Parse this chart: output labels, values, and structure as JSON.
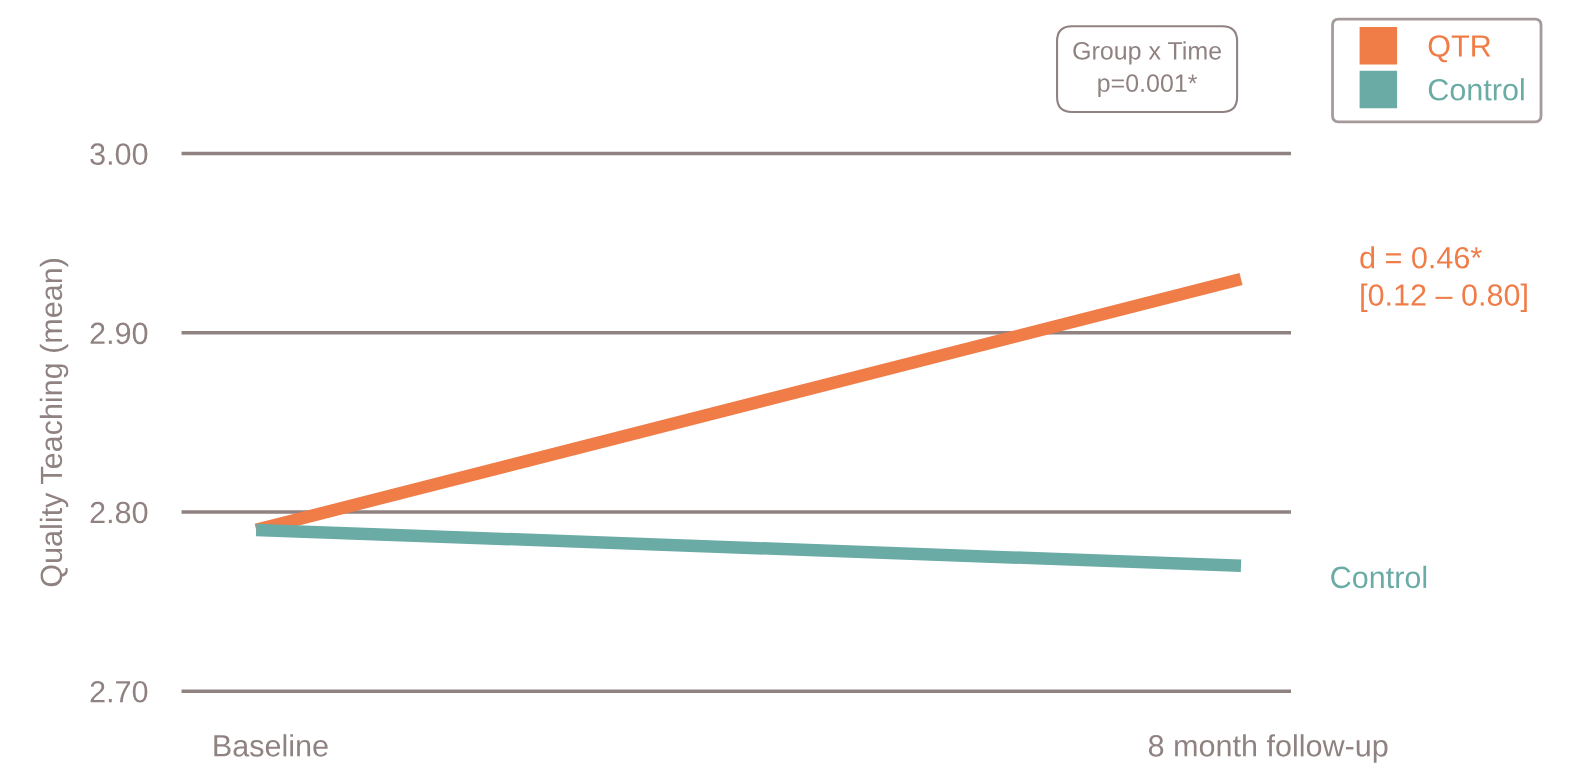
{
  "chart_data": {
    "type": "line",
    "ylabel": "Quality Teaching (mean)",
    "categories": [
      "Baseline",
      "8 month follow-up"
    ],
    "series": [
      {
        "name": "QTR",
        "color": "#f07c47",
        "values": [
          2.79,
          2.93
        ]
      },
      {
        "name": "Control",
        "color": "#6aaba6",
        "values": [
          2.79,
          2.77
        ]
      }
    ],
    "ylim": [
      2.7,
      3.0
    ],
    "yticks": [
      {
        "value": 2.7,
        "label": "2.70"
      },
      {
        "value": 2.8,
        "label": "2.80"
      },
      {
        "value": 2.9,
        "label": "2.90"
      },
      {
        "value": 3.0,
        "label": "3.00"
      }
    ],
    "ref_lines": [
      {
        "axis": "y",
        "value": 2.7,
        "color": "#8f8281"
      },
      {
        "axis": "y",
        "value": 2.8,
        "color": "#8f8281"
      },
      {
        "axis": "y",
        "value": 2.9,
        "color": "#8f8281"
      },
      {
        "axis": "y",
        "value": 3.0,
        "color": "#8f8281"
      }
    ],
    "legend": "top right",
    "marker": "none",
    "line_style": "solid",
    "annotations": [
      "Group x Time\np=0.001*",
      "d = 0.46*\n[0.12 – 0.80]"
    ]
  }
}
